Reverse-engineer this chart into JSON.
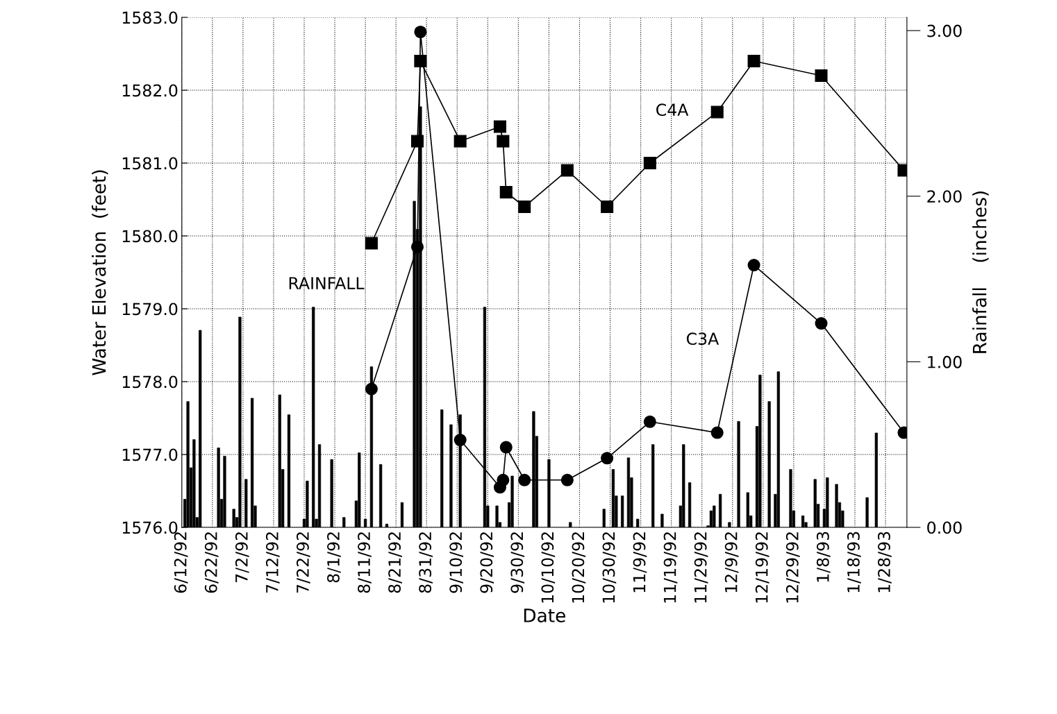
{
  "chart_data": {
    "type": "line",
    "xlabel": "Date",
    "ylabel": "Water Elevation  (feet)",
    "y2label": "Rainfall    (inches)",
    "xlim": [
      "1992-06-12",
      "1993-02-04"
    ],
    "xticks": [
      {
        "value": "1992-06-12",
        "label": "6/12/92"
      },
      {
        "value": "1992-06-22",
        "label": "6/22/92"
      },
      {
        "value": "1992-07-02",
        "label": "7/2/92"
      },
      {
        "value": "1992-07-12",
        "label": "7/12/92"
      },
      {
        "value": "1992-07-22",
        "label": "7/22/92"
      },
      {
        "value": "1992-08-01",
        "label": "8/1/92"
      },
      {
        "value": "1992-08-11",
        "label": "8/11/92"
      },
      {
        "value": "1992-08-21",
        "label": "8/21/92"
      },
      {
        "value": "1992-08-31",
        "label": "8/31/92"
      },
      {
        "value": "1992-09-10",
        "label": "9/10/92"
      },
      {
        "value": "1992-09-20",
        "label": "9/20/92"
      },
      {
        "value": "1992-09-30",
        "label": "9/30/92"
      },
      {
        "value": "1992-10-10",
        "label": "10/10/92"
      },
      {
        "value": "1992-10-20",
        "label": "10/20/92"
      },
      {
        "value": "1992-10-30",
        "label": "10/30/92"
      },
      {
        "value": "1992-11-09",
        "label": "11/9/92"
      },
      {
        "value": "1992-11-19",
        "label": "11/19/92"
      },
      {
        "value": "1992-11-29",
        "label": "11/29/92"
      },
      {
        "value": "1992-12-09",
        "label": "12/9/92"
      },
      {
        "value": "1992-12-19",
        "label": "12/19/92"
      },
      {
        "value": "1992-12-29",
        "label": "12/29/92"
      },
      {
        "value": "1993-01-08",
        "label": "1/8/93"
      },
      {
        "value": "1993-01-18",
        "label": "1/18/93"
      },
      {
        "value": "1993-01-28",
        "label": "1/28/93"
      }
    ],
    "ylim": [
      1576.0,
      1583.0
    ],
    "yticks": [
      {
        "value": 1576,
        "label": "1576.0"
      },
      {
        "value": 1577,
        "label": "1577.0"
      },
      {
        "value": 1578,
        "label": "1578.0"
      },
      {
        "value": 1579,
        "label": "1579.0"
      },
      {
        "value": 1580,
        "label": "1580.0"
      },
      {
        "value": 1581,
        "label": "1581.0"
      },
      {
        "value": 1582,
        "label": "1582.0"
      },
      {
        "value": 1583,
        "label": "1583.0"
      }
    ],
    "y2lim": [
      0,
      3.08
    ],
    "y2ticks": [
      {
        "value": 0,
        "label": "0.00"
      },
      {
        "value": 1,
        "label": "1.00"
      },
      {
        "value": 2,
        "label": "2.00"
      },
      {
        "value": 3,
        "label": "3.00"
      }
    ],
    "grid": true,
    "line_style": "solid",
    "series": [
      {
        "type": "bar",
        "name": "RAINFALL",
        "axis": "y2",
        "color": "#000000",
        "x": [
          "1992-06-13",
          "1992-06-14",
          "1992-06-15",
          "1992-06-16",
          "1992-06-17",
          "1992-06-18",
          "1992-06-24",
          "1992-06-25",
          "1992-06-26",
          "1992-06-29",
          "1992-06-30",
          "1992-07-01",
          "1992-07-03",
          "1992-07-05",
          "1992-07-06",
          "1992-07-14",
          "1992-07-15",
          "1992-07-17",
          "1992-07-22",
          "1992-07-23",
          "1992-07-25",
          "1992-07-26",
          "1992-07-27",
          "1992-07-31",
          "1992-08-04",
          "1992-08-08",
          "1992-08-09",
          "1992-08-11",
          "1992-08-13",
          "1992-08-16",
          "1992-08-18",
          "1992-08-23",
          "1992-08-27",
          "1992-08-28",
          "1992-08-29",
          "1992-09-05",
          "1992-09-08",
          "1992-09-11",
          "1992-09-19",
          "1992-09-20",
          "1992-09-23",
          "1992-09-24",
          "1992-09-27",
          "1992-09-28",
          "1992-10-05",
          "1992-10-06",
          "1992-10-10",
          "1992-10-17",
          "1992-10-28",
          "1992-10-31",
          "1992-11-01",
          "1992-11-03",
          "1992-11-05",
          "1992-11-06",
          "1992-11-08",
          "1992-11-13",
          "1992-11-16",
          "1992-11-22",
          "1992-11-23",
          "1992-11-25",
          "1992-12-01",
          "1992-12-02",
          "1992-12-03",
          "1992-12-05",
          "1992-12-08",
          "1992-12-11",
          "1992-12-14",
          "1992-12-15",
          "1992-12-17",
          "1992-12-18",
          "1992-12-21",
          "1992-12-23",
          "1992-12-24",
          "1992-12-28",
          "1992-12-29",
          "1993-01-01",
          "1993-01-02",
          "1993-01-05",
          "1993-01-06",
          "1993-01-08",
          "1993-01-09",
          "1993-01-12",
          "1993-01-13",
          "1993-01-14",
          "1993-01-22",
          "1993-01-25"
        ],
        "values": [
          0.17,
          0.76,
          0.36,
          0.53,
          0.06,
          1.19,
          0.48,
          0.17,
          0.43,
          0.11,
          0.06,
          1.27,
          0.29,
          0.78,
          0.13,
          0.8,
          0.35,
          0.68,
          0.05,
          0.28,
          1.33,
          0.05,
          0.5,
          0.41,
          0.06,
          0.16,
          0.45,
          0.05,
          0.97,
          0.38,
          0.02,
          0.15,
          1.97,
          1.8,
          2.54,
          0.71,
          0.62,
          0.68,
          1.33,
          0.13,
          0.13,
          0.03,
          0.15,
          0.31,
          0.7,
          0.55,
          0.41,
          0.03,
          0.11,
          0.35,
          0.19,
          0.19,
          0.42,
          0.3,
          0.05,
          0.5,
          0.08,
          0.13,
          0.5,
          0.27,
          0.01,
          0.1,
          0.13,
          0.2,
          0.03,
          0.64,
          0.21,
          0.07,
          0.61,
          0.92,
          0.76,
          0.2,
          0.94,
          0.35,
          0.1,
          0.07,
          0.03,
          0.29,
          0.14,
          0.11,
          0.3,
          0.26,
          0.15,
          0.1,
          0.18,
          0.57
        ]
      },
      {
        "name": "C4A",
        "marker": "square",
        "color": "#000000",
        "x": [
          "1992-08-13",
          "1992-08-28",
          "1992-08-29",
          "1992-09-11",
          "1992-09-24",
          "1992-09-25",
          "1992-09-26",
          "1992-10-02",
          "1992-10-16",
          "1992-10-29",
          "1992-11-12",
          "1992-12-04",
          "1992-12-16",
          "1993-01-07",
          "1993-02-03"
        ],
        "values": [
          1579.9,
          1581.3,
          1582.4,
          1581.3,
          1581.5,
          1581.3,
          1580.6,
          1580.4,
          1580.9,
          1580.4,
          1581.0,
          1581.7,
          1582.4,
          1582.2,
          1580.9
        ]
      },
      {
        "name": "C3A",
        "marker": "circle",
        "color": "#000000",
        "x": [
          "1992-08-13",
          "1992-08-28",
          "1992-08-29",
          "1992-09-11",
          "1992-09-24",
          "1992-09-25",
          "1992-09-26",
          "1992-10-02",
          "1992-10-16",
          "1992-10-29",
          "1992-11-12",
          "1992-12-04",
          "1992-12-16",
          "1993-01-07",
          "1993-02-03"
        ],
        "values": [
          1577.9,
          1579.85,
          1582.8,
          1577.2,
          1576.55,
          1576.65,
          1577.1,
          1576.65,
          1576.65,
          1576.95,
          1577.45,
          1577.3,
          1579.6,
          1578.8,
          1577.3
        ]
      }
    ]
  }
}
